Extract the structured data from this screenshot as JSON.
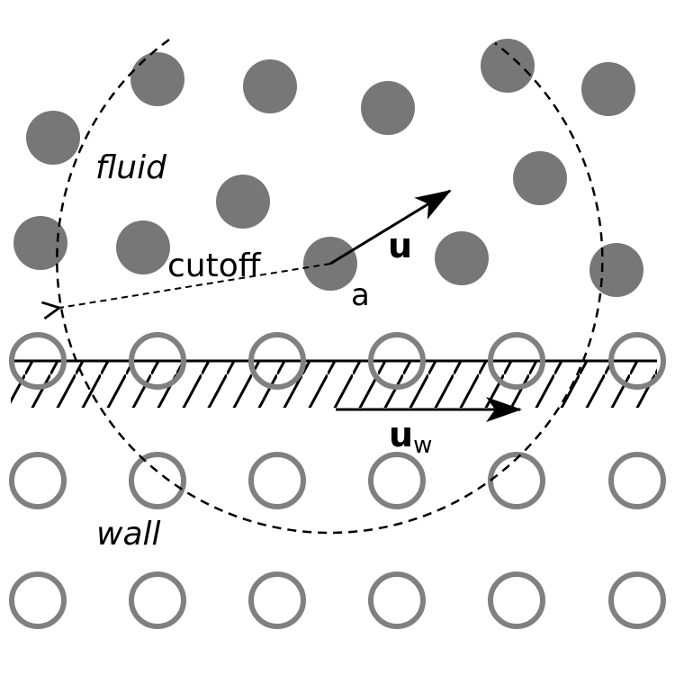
{
  "labels": {
    "fluid": "fluid",
    "wall": "wall",
    "cutoff": "cutoff",
    "particle": "a",
    "velocity": "u",
    "wall_velocity": "u",
    "wall_velocity_subscript": "w"
  },
  "colors": {
    "fluid_particle": "#777777",
    "wall_particle_stroke": "#808080",
    "line": "#000000",
    "background": "#ffffff"
  }
}
